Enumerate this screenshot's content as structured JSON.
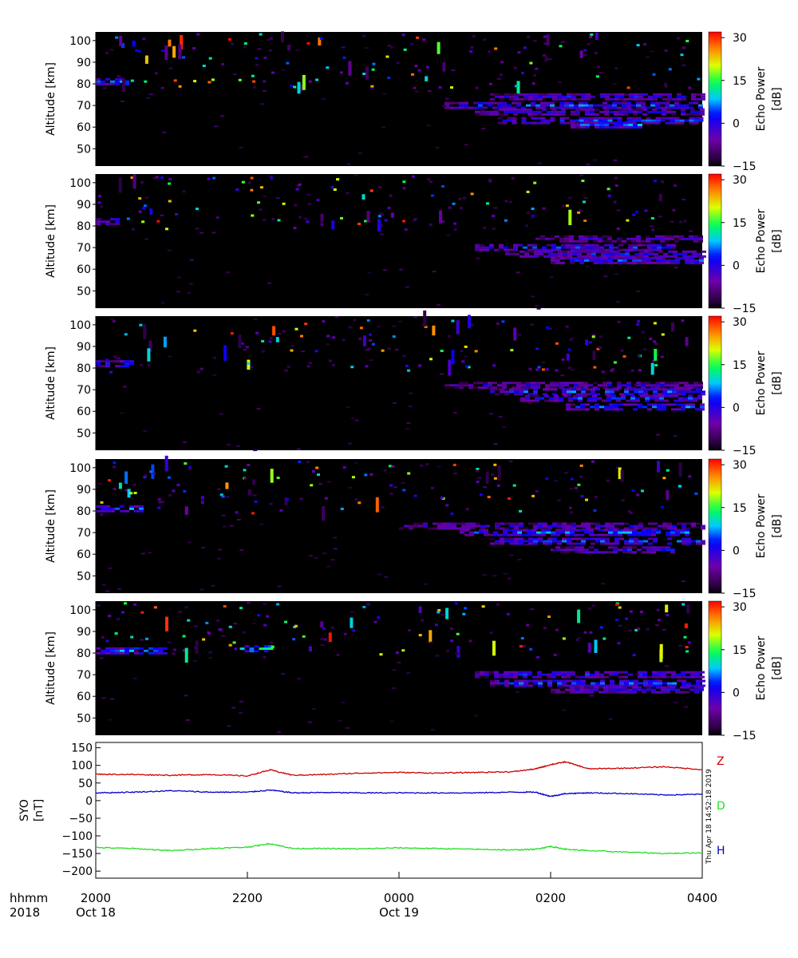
{
  "timestamp_label": "Thu Apr 18 14:52:18 2019",
  "time_axis": {
    "row1_label": "hhmm",
    "row2_label": "2018",
    "ticks": [
      "2000",
      "2200",
      "0000",
      "0200",
      "0400"
    ],
    "date_labels": [
      {
        "at": "2000",
        "text": "Oct 18"
      },
      {
        "at": "0000",
        "text": "Oct 19"
      }
    ],
    "range_hours": [
      20,
      28
    ]
  },
  "chart_data": [
    {
      "type": "heatmap",
      "panel": 1,
      "ylabel": "Altitude [km]",
      "ylim": [
        42,
        104
      ],
      "yticks": [
        50,
        60,
        70,
        80,
        90,
        100
      ],
      "colorbar": {
        "label_line1": "Echo Power",
        "label_line2": "[dB]",
        "range": [
          -15,
          32
        ],
        "ticks": [
          -15,
          0,
          15,
          30
        ]
      },
      "background": "#000000",
      "layers": [
        {
          "alt": 81,
          "value": 6,
          "t_start": 20.0,
          "t_end": 20.4
        },
        {
          "alt": 74,
          "value": 0,
          "t_start": 25.2,
          "t_end": 28.0
        },
        {
          "alt": 70,
          "value": 3,
          "t_start": 24.6,
          "t_end": 28.0
        },
        {
          "alt": 67,
          "value": -1,
          "t_start": 25.0,
          "t_end": 28.0
        },
        {
          "alt": 63,
          "value": 2,
          "t_start": 25.3,
          "t_end": 28.0
        },
        {
          "alt": 61,
          "value": 5,
          "t_start": 26.2,
          "t_end": 27.2
        }
      ]
    },
    {
      "type": "heatmap",
      "panel": 2,
      "ylabel": "Altitude [km]",
      "ylim": [
        42,
        104
      ],
      "yticks": [
        50,
        60,
        70,
        80,
        90,
        100
      ],
      "colorbar": {
        "label_line1": "Echo Power",
        "label_line2": "[dB]",
        "range": [
          -15,
          32
        ],
        "ticks": [
          -15,
          0,
          15,
          30
        ]
      },
      "background": "#000000",
      "layers": [
        {
          "alt": 82,
          "value": 3,
          "t_start": 20.0,
          "t_end": 20.3
        },
        {
          "alt": 74,
          "value": -3,
          "t_start": 25.8,
          "t_end": 28.0
        },
        {
          "alt": 70,
          "value": 1,
          "t_start": 25.0,
          "t_end": 27.6
        },
        {
          "alt": 67,
          "value": 0,
          "t_start": 25.4,
          "t_end": 28.0
        },
        {
          "alt": 64,
          "value": 2,
          "t_start": 26.0,
          "t_end": 28.0
        }
      ]
    },
    {
      "type": "heatmap",
      "panel": 3,
      "ylabel": "Altitude [km]",
      "ylim": [
        42,
        104
      ],
      "yticks": [
        50,
        60,
        70,
        80,
        90,
        100
      ],
      "colorbar": {
        "label_line1": "Echo Power",
        "label_line2": "[dB]",
        "range": [
          -15,
          32
        ],
        "ticks": [
          -15,
          0,
          15,
          30
        ]
      },
      "background": "#000000",
      "layers": [
        {
          "alt": 82,
          "value": 4,
          "t_start": 20.0,
          "t_end": 20.5
        },
        {
          "alt": 72,
          "value": -2,
          "t_start": 24.6,
          "t_end": 28.0
        },
        {
          "alt": 69,
          "value": 3,
          "t_start": 25.2,
          "t_end": 28.0
        },
        {
          "alt": 66,
          "value": 2,
          "t_start": 25.6,
          "t_end": 28.0
        },
        {
          "alt": 62,
          "value": 4,
          "t_start": 26.2,
          "t_end": 28.0
        }
      ]
    },
    {
      "type": "heatmap",
      "panel": 4,
      "ylabel": "Altitude [km]",
      "ylim": [
        42,
        104
      ],
      "yticks": [
        50,
        60,
        70,
        80,
        90,
        100
      ],
      "colorbar": {
        "label_line1": "Echo Power",
        "label_line2": "[dB]",
        "range": [
          -15,
          32
        ],
        "ticks": [
          -15,
          0,
          15,
          30
        ]
      },
      "background": "#000000",
      "layers": [
        {
          "alt": 81,
          "value": 5,
          "t_start": 20.0,
          "t_end": 20.6
        },
        {
          "alt": 73,
          "value": -2,
          "t_start": 24.0,
          "t_end": 28.0
        },
        {
          "alt": 70,
          "value": 4,
          "t_start": 24.8,
          "t_end": 27.8
        },
        {
          "alt": 66,
          "value": 2,
          "t_start": 25.2,
          "t_end": 28.0
        },
        {
          "alt": 62,
          "value": 0,
          "t_start": 26.0,
          "t_end": 27.6
        }
      ]
    },
    {
      "type": "heatmap",
      "panel": 5,
      "ylabel": "Altitude [km]",
      "ylim": [
        42,
        104
      ],
      "yticks": [
        50,
        60,
        70,
        80,
        90,
        100
      ],
      "colorbar": {
        "label_line1": "Echo Power",
        "label_line2": "[dB]",
        "range": [
          -15,
          32
        ],
        "ticks": [
          -15,
          0,
          15,
          30
        ]
      },
      "background": "#000000",
      "layers": [
        {
          "alt": 81,
          "value": 6,
          "t_start": 20.0,
          "t_end": 20.9
        },
        {
          "alt": 82,
          "value": 12,
          "t_start": 21.9,
          "t_end": 22.3
        },
        {
          "alt": 70,
          "value": 1,
          "t_start": 25.0,
          "t_end": 28.0
        },
        {
          "alt": 66,
          "value": 3,
          "t_start": 25.2,
          "t_end": 28.0
        },
        {
          "alt": 63,
          "value": 0,
          "t_start": 26.0,
          "t_end": 28.0
        }
      ]
    },
    {
      "type": "line",
      "panel": 6,
      "ylabel_line1": "SYO",
      "ylabel_line2": "[nT]",
      "ylim": [
        -220,
        165
      ],
      "yticks": [
        150,
        100,
        50,
        0,
        -50,
        -100,
        -150,
        -200
      ],
      "ytick_labels": [
        "150",
        "100",
        "50",
        "0",
        "−50",
        "−100",
        "−150",
        "−200"
      ],
      "x_hours": [
        20.0,
        20.5,
        21.0,
        21.5,
        22.0,
        22.3,
        22.6,
        23.0,
        23.5,
        24.0,
        24.5,
        25.0,
        25.5,
        25.8,
        26.0,
        26.2,
        26.5,
        27.0,
        27.5,
        28.0
      ],
      "series": [
        {
          "name": "Z",
          "color": "#cc0000",
          "values": [
            75,
            74,
            72,
            74,
            70,
            87,
            72,
            74,
            78,
            80,
            78,
            80,
            82,
            90,
            102,
            110,
            90,
            92,
            96,
            88
          ]
        },
        {
          "name": "D",
          "color": "#22dd22",
          "values": [
            -133,
            -136,
            -142,
            -136,
            -132,
            -122,
            -136,
            -136,
            -137,
            -134,
            -136,
            -138,
            -140,
            -138,
            -130,
            -138,
            -142,
            -146,
            -150,
            -148
          ]
        },
        {
          "name": "H",
          "color": "#0000cc",
          "values": [
            22,
            24,
            28,
            24,
            24,
            30,
            22,
            23,
            22,
            22,
            22,
            22,
            24,
            24,
            12,
            20,
            22,
            20,
            16,
            18
          ]
        }
      ]
    }
  ]
}
